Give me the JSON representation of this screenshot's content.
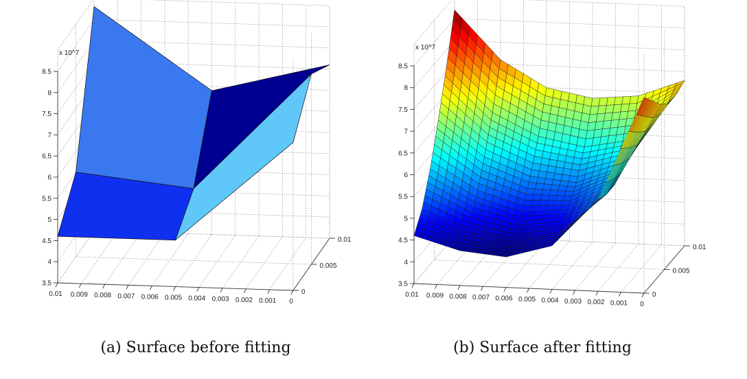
{
  "captions": {
    "a": "(a) Surface before fitting",
    "b": "(b) Surface after fitting"
  },
  "chart_data": [
    {
      "type": "surface",
      "title": "",
      "grid": "on",
      "exponent_label": "x 10^7",
      "x_ticks": [
        "0.01",
        "0.009",
        "0.008",
        "0.007",
        "0.006",
        "0.005",
        "0.004",
        "0.003",
        "0.002",
        "0.001",
        "0"
      ],
      "y_ticks": [
        "0",
        "0.005",
        "0.01"
      ],
      "z_ticks": [
        "3.5",
        "4",
        "4.5",
        "5",
        "5.5",
        "6",
        "6.5",
        "7",
        "7.5",
        "8",
        "8.5"
      ],
      "xlim": [
        0,
        0.01
      ],
      "ylim": [
        0,
        0.01
      ],
      "zlim": [
        3.5,
        9
      ],
      "x": [
        0.01,
        0.005,
        0
      ],
      "y": [
        0,
        0.005,
        0.01
      ],
      "z": [
        [
          4.6,
          4.6,
          7.0
        ],
        [
          5.5,
          5.2,
          8.0
        ],
        [
          8.8,
          6.9,
          7.6
        ]
      ],
      "face_colors": [
        [
          "#1030f0",
          "#60c8f8"
        ],
        [
          "#3a78f0",
          "#000090"
        ]
      ]
    },
    {
      "type": "surface",
      "title": "",
      "grid": "on",
      "colormap": "jet",
      "exponent_label": "x 10^7",
      "x_ticks": [
        "0.01",
        "0.009",
        "0.008",
        "0.007",
        "0.006",
        "0.005",
        "0.004",
        "0.003",
        "0.002",
        "0.001",
        "0"
      ],
      "y_ticks": [
        "0",
        "0.005",
        "0.01"
      ],
      "z_ticks": [
        "3.5",
        "4",
        "4.5",
        "5",
        "5.5",
        "6",
        "6.5",
        "7",
        "7.5",
        "8",
        "8.5"
      ],
      "xlim": [
        0,
        0.01
      ],
      "ylim": [
        0,
        0.01
      ],
      "zlim": [
        3.5,
        9
      ],
      "x": [
        0.01,
        0.008,
        0.006,
        0.004,
        0.002,
        0
      ],
      "y": [
        0,
        0.002,
        0.004,
        0.006,
        0.008,
        0.01
      ],
      "z": [
        [
          4.6,
          4.3,
          4.2,
          4.5,
          5.6,
          8.0
        ],
        [
          5.0,
          4.6,
          4.4,
          4.6,
          5.5,
          7.7
        ],
        [
          5.7,
          5.1,
          4.8,
          4.9,
          5.5,
          7.4
        ],
        [
          6.6,
          5.8,
          5.4,
          5.3,
          5.7,
          7.2
        ],
        [
          7.6,
          6.6,
          6.1,
          5.9,
          6.1,
          7.2
        ],
        [
          8.7,
          7.6,
          7.0,
          6.8,
          6.9,
          7.3
        ]
      ]
    }
  ]
}
